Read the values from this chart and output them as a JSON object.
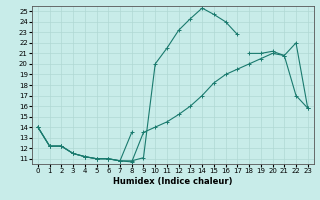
{
  "background_color": "#c8ece9",
  "grid_color": "#b0d8d4",
  "line_color": "#1a7a6e",
  "xlabel": "Humidex (Indice chaleur)",
  "xlim": [
    -0.5,
    23.5
  ],
  "ylim": [
    10.5,
    25.5
  ],
  "xticks": [
    0,
    1,
    2,
    3,
    4,
    5,
    6,
    7,
    8,
    9,
    10,
    11,
    12,
    13,
    14,
    15,
    16,
    17,
    18,
    19,
    20,
    21,
    22,
    23
  ],
  "yticks": [
    11,
    12,
    13,
    14,
    15,
    16,
    17,
    18,
    19,
    20,
    21,
    22,
    23,
    24,
    25
  ],
  "line1_x": [
    0,
    1,
    2,
    3,
    4,
    5,
    6,
    7,
    8,
    9,
    10,
    11,
    12,
    13,
    14,
    15,
    16,
    17,
    18,
    19,
    20,
    21,
    22,
    23
  ],
  "line1_y": [
    14.0,
    12.2,
    12.2,
    11.5,
    11.2,
    11.0,
    11.0,
    10.8,
    10.7,
    13.5,
    14.0,
    14.5,
    15.2,
    16.0,
    17.0,
    18.2,
    19.0,
    19.5,
    20.0,
    20.5,
    21.0,
    20.8,
    22.0,
    15.8
  ],
  "line2_x": [
    0,
    1,
    2,
    3,
    4,
    5,
    6,
    7,
    8,
    9,
    10,
    11,
    12,
    13,
    14,
    15,
    16,
    17,
    18,
    19,
    20,
    21,
    22,
    23
  ],
  "line2_y": [
    14.0,
    12.2,
    12.2,
    11.5,
    11.2,
    11.0,
    11.0,
    10.8,
    10.8,
    11.1,
    20.0,
    21.5,
    23.2,
    24.3,
    25.3,
    24.7,
    24.0,
    22.8,
    null,
    null,
    null,
    null,
    null,
    null
  ],
  "line3_x": [
    0,
    1,
    2,
    3,
    4,
    5,
    6,
    7,
    8,
    9,
    10,
    11,
    12,
    13,
    14,
    15,
    16,
    17,
    18,
    19,
    20,
    21,
    22,
    23
  ],
  "line3_y": [
    14.0,
    12.2,
    12.2,
    11.5,
    11.2,
    11.0,
    11.0,
    10.8,
    13.5,
    null,
    null,
    null,
    null,
    null,
    null,
    null,
    null,
    null,
    21.0,
    21.0,
    21.2,
    20.8,
    17.0,
    15.8
  ]
}
